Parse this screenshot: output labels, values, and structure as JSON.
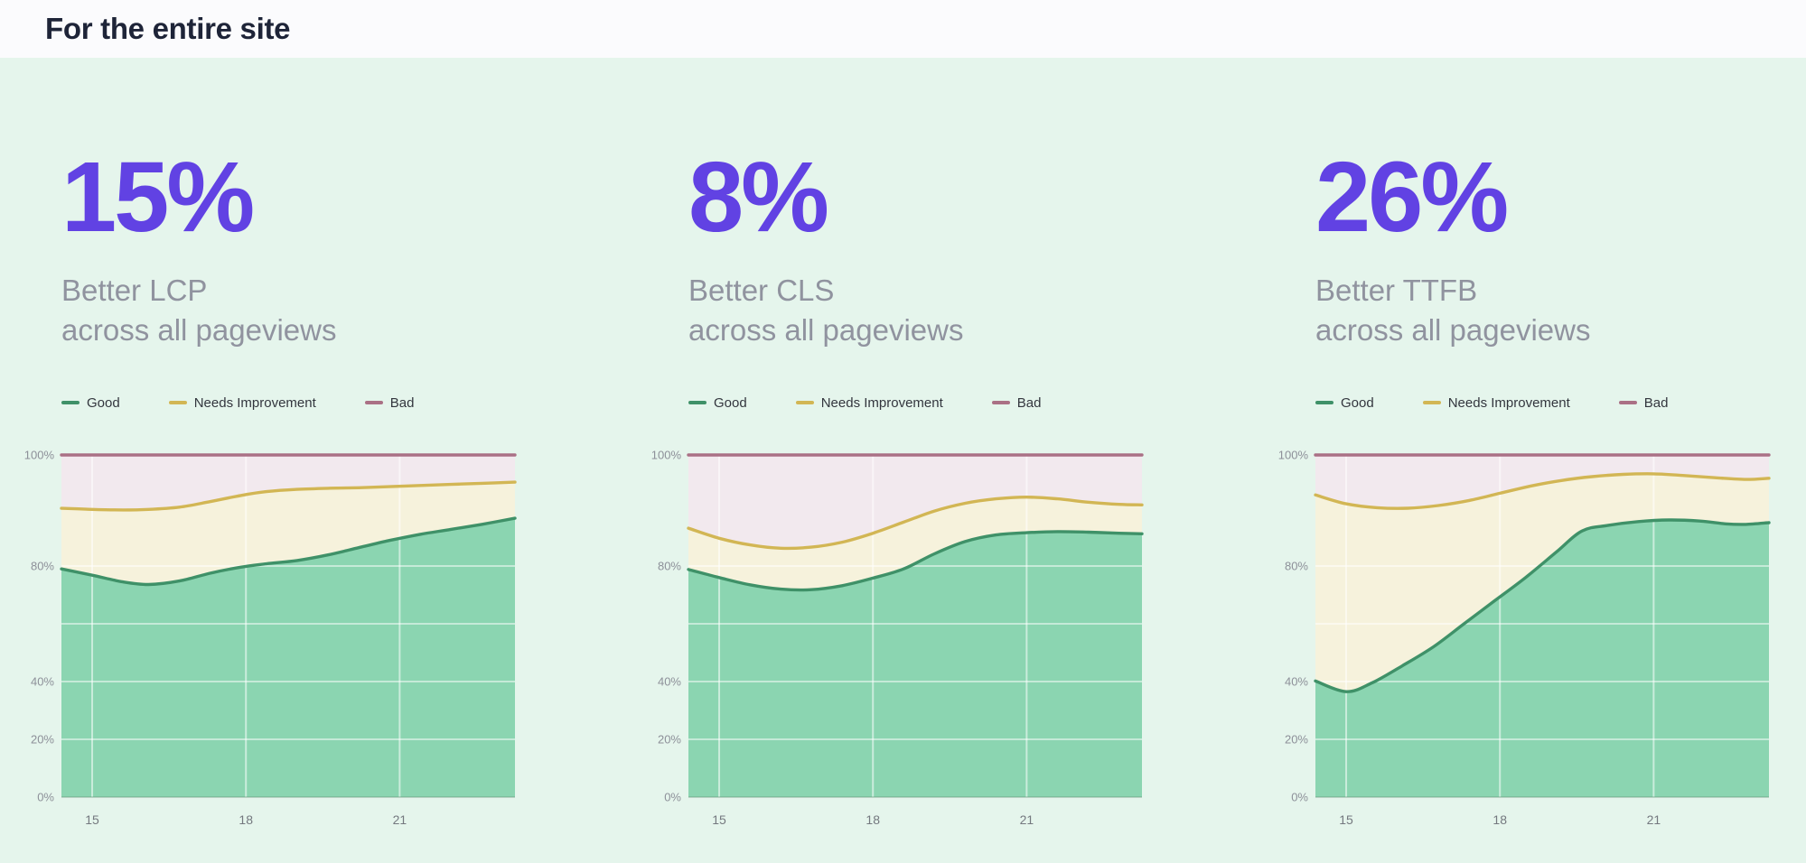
{
  "header": {
    "title": "For the entire site"
  },
  "colors": {
    "accent_purple": "#6142e3",
    "page_background": "#e5f5ec",
    "topbar_background": "#fbfbfd",
    "title_text": "#1e2438",
    "subtitle_text": "#90939f",
    "good_line": "#3f9168",
    "good_fill": "#8bd5b1",
    "needs_improvement_line": "#d2b654",
    "needs_improvement_fill": "#f6f2dc",
    "bad_line": "#aa7085",
    "bad_fill": "#f2e9ee"
  },
  "legend": [
    {
      "label": "Good",
      "color": "#3f9168"
    },
    {
      "label": "Needs Improvement",
      "color": "#d2b654"
    },
    {
      "label": "Bad",
      "color": "#aa7085"
    }
  ],
  "columns": [
    {
      "value": "15%",
      "label_line1": "Better LCP",
      "label_line2": "across all pageviews"
    },
    {
      "value": "8%",
      "label_line1": "Better CLS",
      "label_line2": "across all pageviews"
    },
    {
      "value": "26%",
      "label_line1": "Better TTFB",
      "label_line2": "across all pageviews"
    }
  ],
  "chart_data": [
    {
      "type": "area",
      "metric": "LCP",
      "stacking": "cumulative_top_boundaries",
      "x_domain": [
        14.4,
        23.25
      ],
      "y_domain": [
        0,
        100
      ],
      "x_ticks": [
        {
          "label": "15",
          "v": 15
        },
        {
          "label": "18",
          "v": 18
        },
        {
          "label": "21",
          "v": 21
        }
      ],
      "y_ticks": [
        {
          "label": "100%",
          "v": 100
        },
        {
          "label": "80%",
          "v": 80
        },
        {
          "label": "40%",
          "v": 40
        },
        {
          "label": "20%",
          "v": 20
        },
        {
          "label": "0%",
          "v": 0
        }
      ],
      "series": [
        {
          "name": "Good",
          "line_color": "#3f9168",
          "fill_color": "#8bd5b1",
          "points": [
            [
              14.4,
              79
            ],
            [
              15,
              76.8
            ],
            [
              15.6,
              74.5
            ],
            [
              16.1,
              73.6
            ],
            [
              16.7,
              74.8
            ],
            [
              17.3,
              77.5
            ],
            [
              17.9,
              79.6
            ],
            [
              18.4,
              80.4
            ],
            [
              19,
              81
            ],
            [
              19.6,
              82
            ],
            [
              20.2,
              83.3
            ],
            [
              20.8,
              84.6
            ],
            [
              21.4,
              85.7
            ],
            [
              22,
              86.6
            ],
            [
              22.6,
              87.5
            ],
            [
              23.25,
              88.6
            ]
          ]
        },
        {
          "name": "Needs Improvement",
          "line_color": "#d2b654",
          "fill_color": "#f6f2dc",
          "points": [
            [
              14.4,
              90.4
            ],
            [
              15,
              90.2
            ],
            [
              15.6,
              90.1
            ],
            [
              16.1,
              90.2
            ],
            [
              16.7,
              90.6
            ],
            [
              17.3,
              91.6
            ],
            [
              17.9,
              92.7
            ],
            [
              18.4,
              93.4
            ],
            [
              19,
              93.8
            ],
            [
              19.6,
              94
            ],
            [
              20.2,
              94.1
            ],
            [
              20.8,
              94.3
            ],
            [
              21.4,
              94.5
            ],
            [
              22,
              94.7
            ],
            [
              22.6,
              94.9
            ],
            [
              23.25,
              95.1
            ]
          ]
        },
        {
          "name": "Bad",
          "line_color": "#aa7085",
          "fill_color": "#f2e9ee",
          "points": [
            [
              14.4,
              100
            ],
            [
              23.25,
              100
            ]
          ]
        }
      ]
    },
    {
      "type": "area",
      "metric": "CLS",
      "stacking": "cumulative_top_boundaries",
      "x_domain": [
        14.4,
        23.25
      ],
      "y_domain": [
        0,
        100
      ],
      "x_ticks": [
        {
          "label": "15",
          "v": 15
        },
        {
          "label": "18",
          "v": 18
        },
        {
          "label": "21",
          "v": 21
        }
      ],
      "y_ticks": [
        {
          "label": "100%",
          "v": 100
        },
        {
          "label": "80%",
          "v": 80
        },
        {
          "label": "40%",
          "v": 40
        },
        {
          "label": "20%",
          "v": 20
        },
        {
          "label": "0%",
          "v": 0
        }
      ],
      "series": [
        {
          "name": "Good",
          "line_color": "#3f9168",
          "fill_color": "#8bd5b1",
          "points": [
            [
              14.4,
              78.8
            ],
            [
              15,
              76
            ],
            [
              15.6,
              73.5
            ],
            [
              16.2,
              72
            ],
            [
              16.8,
              71.8
            ],
            [
              17.4,
              73.2
            ],
            [
              18,
              75.8
            ],
            [
              18.6,
              79
            ],
            [
              19.2,
              82.2
            ],
            [
              19.8,
              84.4
            ],
            [
              20.4,
              85.6
            ],
            [
              21,
              86
            ],
            [
              21.6,
              86.2
            ],
            [
              22.2,
              86.1
            ],
            [
              22.8,
              85.9
            ],
            [
              23.25,
              85.8
            ]
          ]
        },
        {
          "name": "Needs Improvement",
          "line_color": "#d2b654",
          "fill_color": "#f6f2dc",
          "points": [
            [
              14.4,
              86.8
            ],
            [
              15,
              85
            ],
            [
              15.6,
              83.8
            ],
            [
              16.2,
              83.2
            ],
            [
              16.8,
              83.4
            ],
            [
              17.4,
              84.3
            ],
            [
              18,
              85.9
            ],
            [
              18.6,
              87.9
            ],
            [
              19.2,
              89.9
            ],
            [
              19.8,
              91.3
            ],
            [
              20.4,
              92.1
            ],
            [
              21,
              92.4
            ],
            [
              21.6,
              92.1
            ],
            [
              22.2,
              91.5
            ],
            [
              22.8,
              91.1
            ],
            [
              23.25,
              91
            ]
          ]
        },
        {
          "name": "Bad",
          "line_color": "#aa7085",
          "fill_color": "#f2e9ee",
          "points": [
            [
              14.4,
              100
            ],
            [
              23.25,
              100
            ]
          ]
        }
      ]
    },
    {
      "type": "area",
      "metric": "TTFB",
      "stacking": "cumulative_top_boundaries",
      "x_domain": [
        14.4,
        23.25
      ],
      "y_domain": [
        0,
        100
      ],
      "x_ticks": [
        {
          "label": "15",
          "v": 15
        },
        {
          "label": "18",
          "v": 18
        },
        {
          "label": "21",
          "v": 21
        }
      ],
      "y_ticks": [
        {
          "label": "100%",
          "v": 100
        },
        {
          "label": "80%",
          "v": 80
        },
        {
          "label": "40%",
          "v": 40
        },
        {
          "label": "20%",
          "v": 20
        },
        {
          "label": "0%",
          "v": 0
        }
      ],
      "series": [
        {
          "name": "Good",
          "line_color": "#3f9168",
          "fill_color": "#8bd5b1",
          "points": [
            [
              14.4,
              40.2
            ],
            [
              15,
              36.5
            ],
            [
              15.5,
              39.5
            ],
            [
              16.1,
              45.5
            ],
            [
              16.7,
              52
            ],
            [
              17.3,
              60
            ],
            [
              17.9,
              68
            ],
            [
              18.5,
              76
            ],
            [
              19.1,
              82.5
            ],
            [
              19.6,
              86.3
            ],
            [
              20.1,
              87.3
            ],
            [
              20.7,
              88
            ],
            [
              21.3,
              88.3
            ],
            [
              21.9,
              88.1
            ],
            [
              22.4,
              87.6
            ],
            [
              22.8,
              87.5
            ],
            [
              23.25,
              87.8
            ]
          ]
        },
        {
          "name": "Needs Improvement",
          "line_color": "#d2b654",
          "fill_color": "#f6f2dc",
          "points": [
            [
              14.4,
              92.8
            ],
            [
              15,
              91.2
            ],
            [
              15.6,
              90.5
            ],
            [
              16.2,
              90.4
            ],
            [
              16.8,
              90.9
            ],
            [
              17.4,
              91.8
            ],
            [
              18,
              93.1
            ],
            [
              18.6,
              94.4
            ],
            [
              19.2,
              95.4
            ],
            [
              19.8,
              96.1
            ],
            [
              20.4,
              96.5
            ],
            [
              21,
              96.6
            ],
            [
              21.6,
              96.3
            ],
            [
              22.2,
              95.9
            ],
            [
              22.8,
              95.6
            ],
            [
              23.25,
              95.8
            ]
          ]
        },
        {
          "name": "Bad",
          "line_color": "#aa7085",
          "fill_color": "#f2e9ee",
          "points": [
            [
              14.4,
              100
            ],
            [
              23.25,
              100
            ]
          ]
        }
      ]
    }
  ]
}
